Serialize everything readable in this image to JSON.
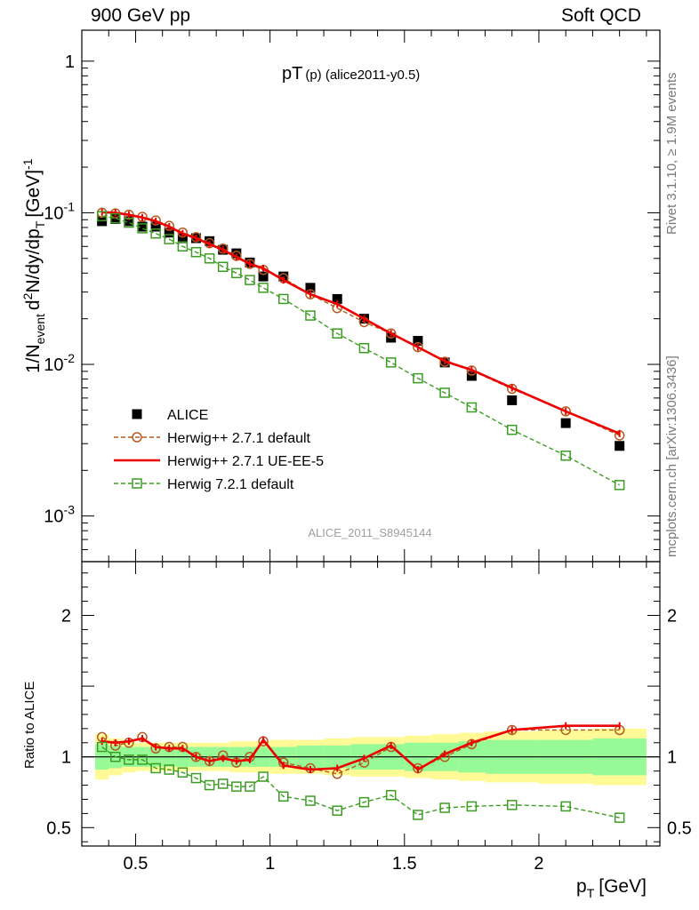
{
  "header": {
    "left": "900 GeV pp",
    "right": "Soft QCD"
  },
  "side": {
    "rivet": "Rivet 3.1.10, ≥ 1.9M events",
    "mcplots": "mcplots.cern.ch [arXiv:1306.3436]"
  },
  "chart_data": [
    {
      "type": "scatter",
      "panel": "main",
      "title_main": "pT",
      "title_sub": "(p) (alice2011-y0.5)",
      "watermark": "ALICE_2011_S8945144",
      "ylabel": "1/N_event d^2N/dy/dp_T [GeV]^-1",
      "yscale": "log",
      "ylim": [
        0.0005,
        1.6
      ],
      "xlim": [
        0.3,
        2.45
      ],
      "yticks": [
        {
          "v": 0.001,
          "mant": "10",
          "exp": "-3"
        },
        {
          "v": 0.01,
          "mant": "10",
          "exp": "-2"
        },
        {
          "v": 0.1,
          "mant": "10",
          "exp": "-1"
        },
        {
          "v": 1,
          "mant": "1",
          "exp": ""
        }
      ],
      "legend": {
        "placement": "middle-left"
      },
      "x": [
        0.375,
        0.425,
        0.475,
        0.525,
        0.575,
        0.625,
        0.675,
        0.725,
        0.775,
        0.825,
        0.875,
        0.925,
        0.975,
        1.05,
        1.15,
        1.25,
        1.35,
        1.45,
        1.55,
        1.65,
        1.75,
        1.9,
        2.1,
        2.3
      ],
      "series": [
        {
          "name": "ALICE",
          "style": "square-filled",
          "color": "#000000",
          "values": [
            0.088,
            0.091,
            0.088,
            0.081,
            0.081,
            0.074,
            0.068,
            0.068,
            0.065,
            0.057,
            0.054,
            0.047,
            0.038,
            0.038,
            0.032,
            0.027,
            0.02,
            0.015,
            0.0143,
            0.0103,
            0.0084,
            0.0058,
            0.0041,
            0.0029
          ]
        },
        {
          "name": "Herwig++ 2.7.1 default",
          "style": "circle-dashed",
          "color": "#b35b1e",
          "values": [
            0.1,
            0.099,
            0.097,
            0.094,
            0.089,
            0.082,
            0.074,
            0.069,
            0.063,
            0.058,
            0.052,
            0.046,
            0.042,
            0.037,
            0.029,
            0.0235,
            0.019,
            0.016,
            0.013,
            0.0104,
            0.0091,
            0.0069,
            0.0049,
            0.0034
          ]
        },
        {
          "name": "Herwig++ 2.7.1 UE-EE-5",
          "style": "solid",
          "color": "#ee0000",
          "values": [
            0.101,
            0.1,
            0.097,
            0.093,
            0.088,
            0.081,
            0.073,
            0.068,
            0.062,
            0.057,
            0.051,
            0.046,
            0.043,
            0.036,
            0.029,
            0.025,
            0.02,
            0.016,
            0.013,
            0.0105,
            0.0092,
            0.007,
            0.0049,
            0.0035
          ]
        },
        {
          "name": "Herwig 7.2.1 default",
          "style": "square-dashed",
          "color": "#3c9d23",
          "values": [
            0.095,
            0.092,
            0.086,
            0.079,
            0.073,
            0.067,
            0.06,
            0.055,
            0.05,
            0.044,
            0.04,
            0.036,
            0.032,
            0.027,
            0.021,
            0.016,
            0.0128,
            0.0103,
            0.0081,
            0.0065,
            0.0052,
            0.0037,
            0.0025,
            0.0016
          ]
        }
      ]
    },
    {
      "type": "line",
      "panel": "ratio",
      "ylabel": "Ratio to ALICE",
      "xlabel": "p_T [GeV]",
      "ylim": [
        0.37,
        2.38
      ],
      "xlim": [
        0.3,
        2.45
      ],
      "yticks": [
        0.5,
        1,
        2
      ],
      "xticks": [
        0.5,
        1,
        1.5,
        2
      ],
      "band_x_edges": [
        0.35,
        0.4,
        0.45,
        0.5,
        0.55,
        0.6,
        0.65,
        0.7,
        0.75,
        0.8,
        0.85,
        0.9,
        0.95,
        1.0,
        1.1,
        1.2,
        1.3,
        1.4,
        1.5,
        1.6,
        1.7,
        1.8,
        2.0,
        2.2,
        2.4
      ],
      "band_inner": [
        0.09,
        0.08,
        0.07,
        0.07,
        0.07,
        0.07,
        0.07,
        0.07,
        0.07,
        0.07,
        0.07,
        0.07,
        0.07,
        0.07,
        0.08,
        0.08,
        0.09,
        0.09,
        0.1,
        0.1,
        0.11,
        0.12,
        0.12,
        0.13
      ],
      "band_outer": [
        0.16,
        0.13,
        0.11,
        0.1,
        0.1,
        0.1,
        0.1,
        0.1,
        0.1,
        0.1,
        0.11,
        0.11,
        0.11,
        0.12,
        0.12,
        0.13,
        0.14,
        0.14,
        0.15,
        0.16,
        0.17,
        0.18,
        0.19,
        0.2
      ],
      "x": [
        0.375,
        0.425,
        0.475,
        0.525,
        0.575,
        0.625,
        0.675,
        0.725,
        0.775,
        0.825,
        0.875,
        0.925,
        0.975,
        1.05,
        1.15,
        1.25,
        1.35,
        1.45,
        1.55,
        1.65,
        1.75,
        1.9,
        2.1,
        2.3
      ],
      "series": [
        {
          "name": "Herwig++ 2.7.1 default",
          "style": "circle-dashed",
          "color": "#b35b1e",
          "values": [
            1.14,
            1.08,
            1.1,
            1.14,
            1.06,
            1.07,
            1.07,
            1.0,
            0.97,
            1.01,
            0.96,
            1.0,
            1.11,
            0.96,
            0.92,
            0.88,
            0.96,
            1.07,
            0.92,
            1.0,
            1.09,
            1.19,
            1.19,
            1.19
          ]
        },
        {
          "name": "Herwig++ 2.7.1 UE-EE-5",
          "style": "solid",
          "color": "#ee0000",
          "values": [
            1.11,
            1.1,
            1.11,
            1.13,
            1.07,
            1.06,
            1.06,
            1.0,
            0.97,
            0.99,
            0.97,
            0.98,
            1.12,
            0.94,
            0.91,
            0.92,
            0.99,
            1.08,
            0.91,
            1.02,
            1.1,
            1.19,
            1.22,
            1.22
          ]
        },
        {
          "name": "Herwig 7.2.1 default",
          "style": "square-dashed",
          "color": "#3c9d23",
          "values": [
            1.07,
            1.0,
            0.98,
            0.98,
            0.92,
            0.91,
            0.89,
            0.85,
            0.8,
            0.81,
            0.79,
            0.79,
            0.86,
            0.72,
            0.69,
            0.62,
            0.68,
            0.73,
            0.59,
            0.64,
            0.65,
            0.66,
            0.65,
            0.57
          ]
        }
      ]
    }
  ]
}
